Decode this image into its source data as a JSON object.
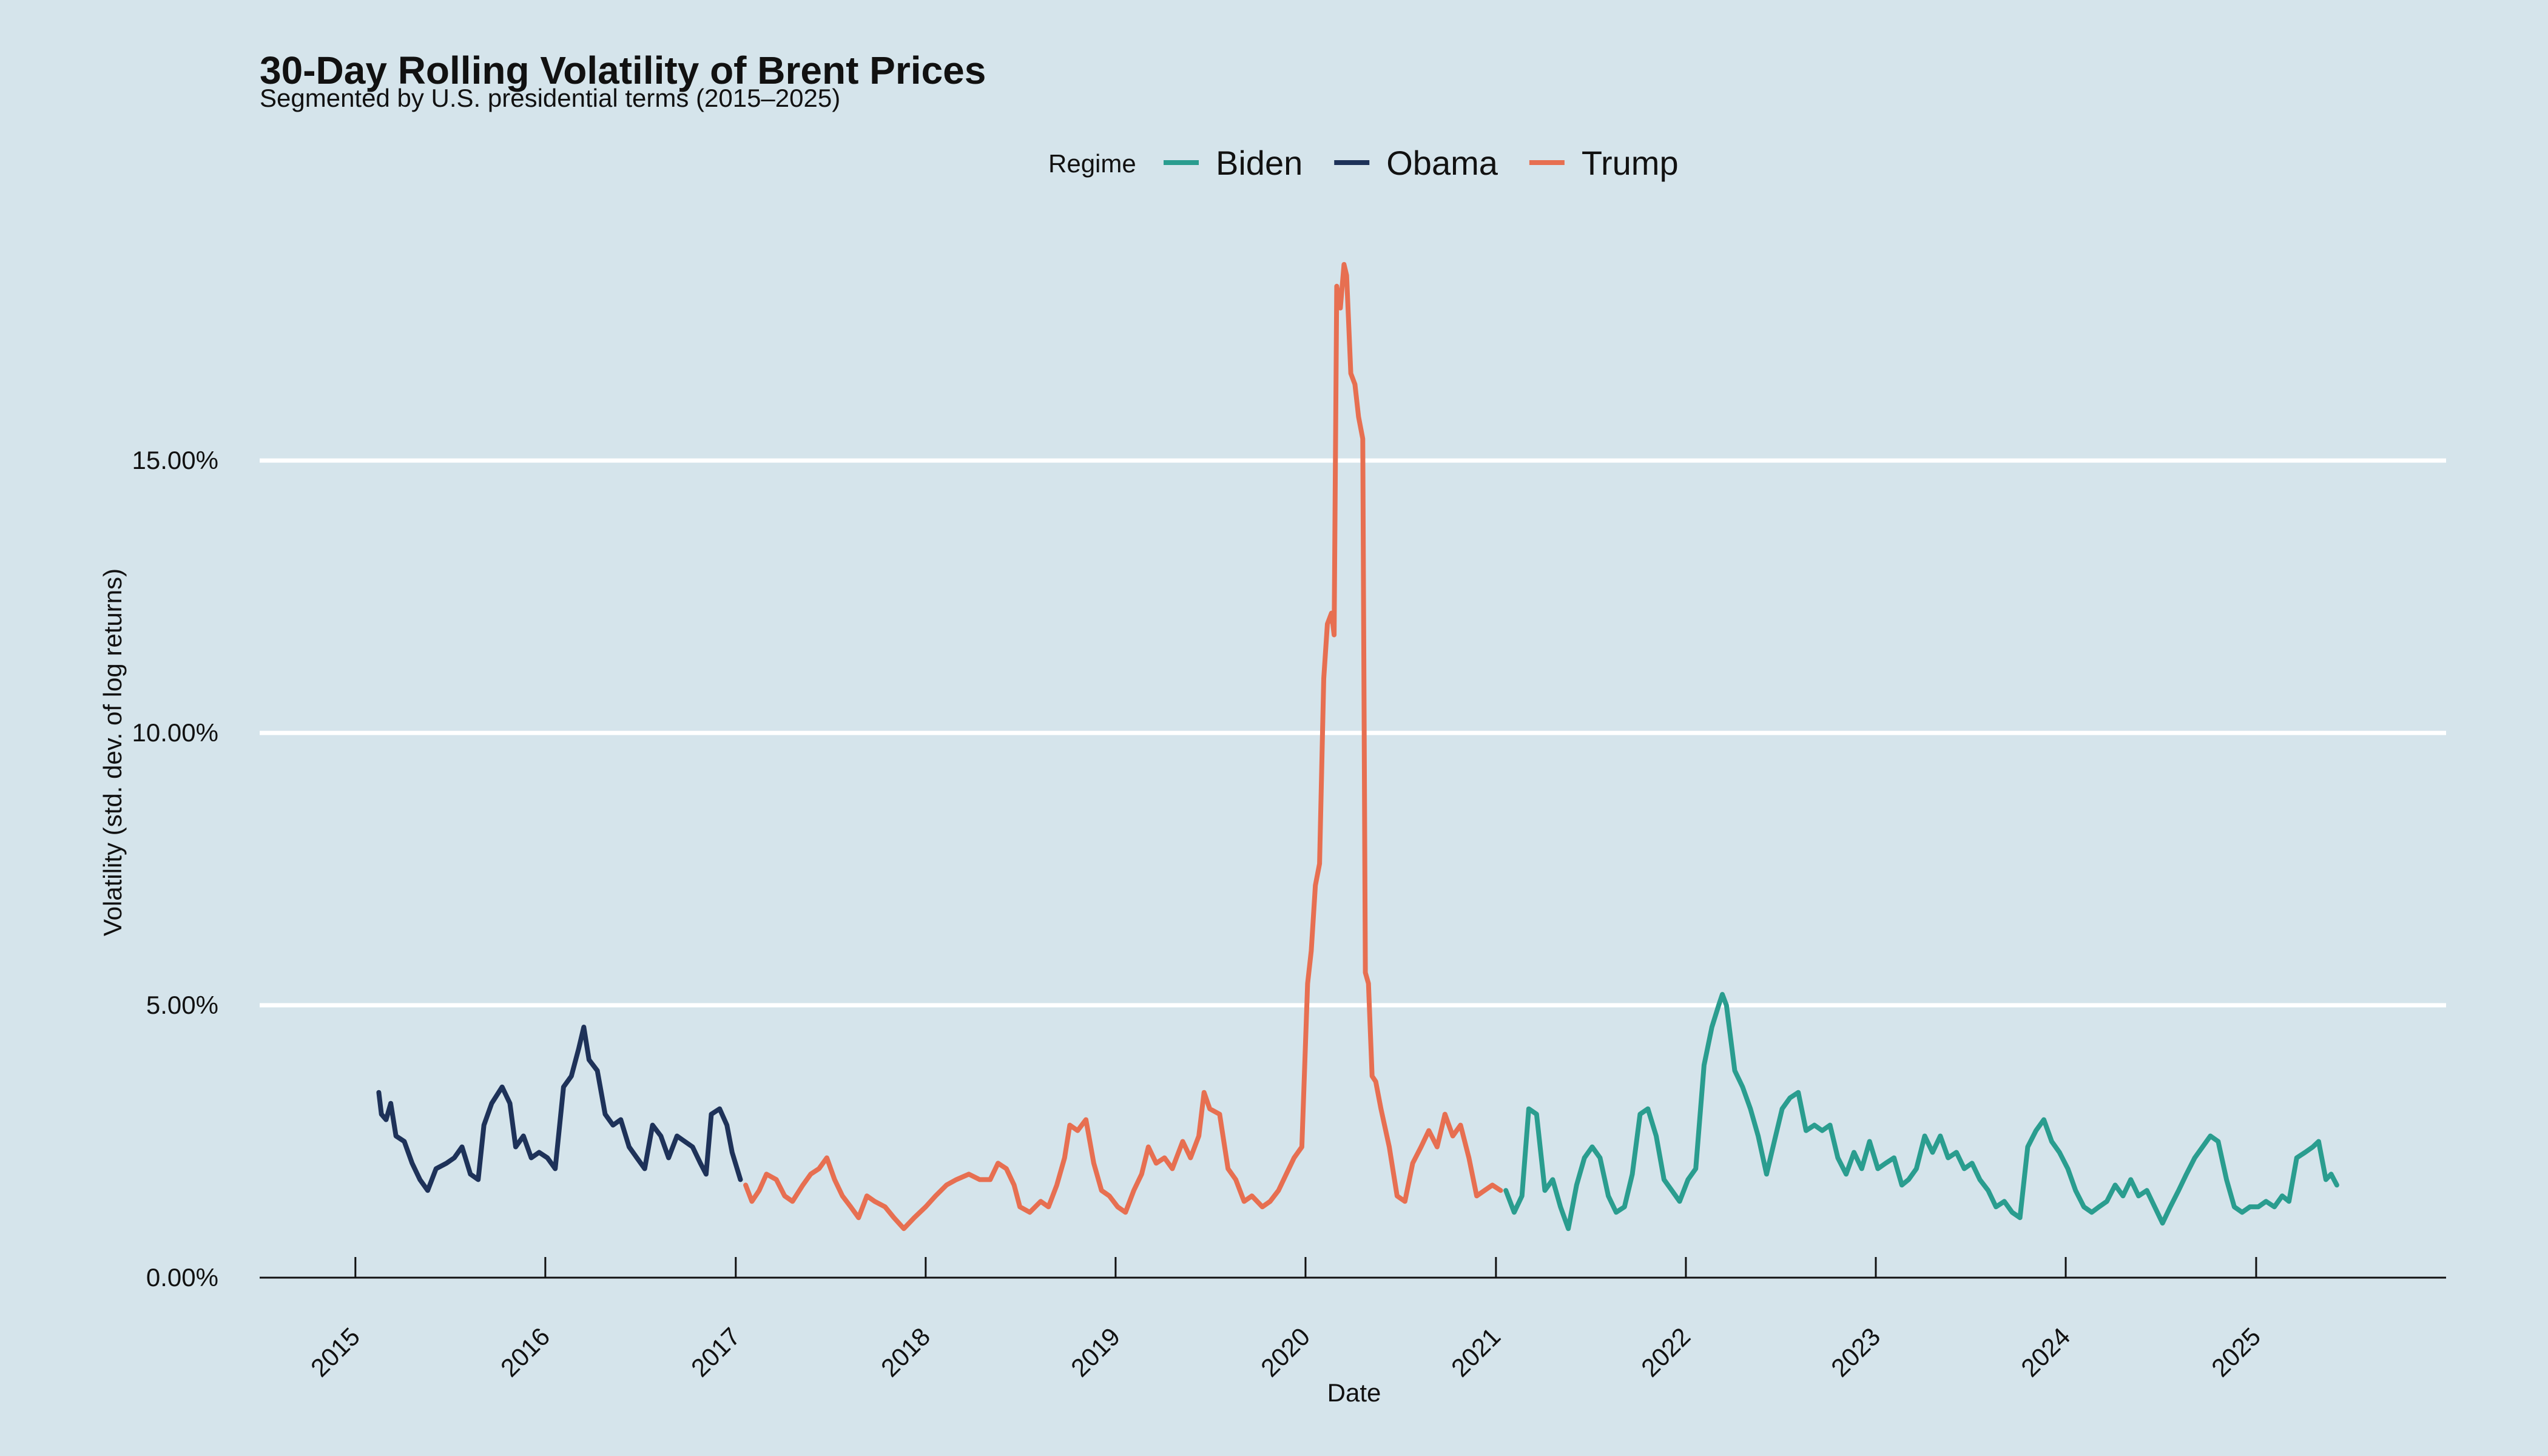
{
  "chart_data": {
    "type": "line",
    "title": "30-Day Rolling Volatility of Brent Prices",
    "subtitle": "Segmented by U.S. presidential terms (2015–2025)",
    "xlabel": "Date",
    "ylabel": "Volatility (std. dev. of log returns)",
    "ylim": [
      0,
      0.19
    ],
    "y_ticks": [
      0,
      0.05,
      0.1,
      0.15
    ],
    "y_tick_labels": [
      "0.00%",
      "5.00%",
      "10.00%",
      "15.00%"
    ],
    "x_ticks": [
      "2015",
      "2016",
      "2017",
      "2018",
      "2019",
      "2020",
      "2021",
      "2022",
      "2023",
      "2024",
      "2025"
    ],
    "xlim": [
      "2014-07-01",
      "2026-01-01"
    ],
    "grid": "horizontal major",
    "legend": {
      "title": "Regime",
      "position": "top",
      "entries": [
        {
          "name": "Biden",
          "color": "#2a9d8f"
        },
        {
          "name": "Obama",
          "color": "#1e3259"
        },
        {
          "name": "Trump",
          "color": "#e76f51"
        }
      ]
    },
    "series": [
      {
        "name": "Obama",
        "color": "#1e3259",
        "points": [
          [
            "2015-02-15",
            0.034
          ],
          [
            "2015-02-20",
            0.03
          ],
          [
            "2015-03-01",
            0.029
          ],
          [
            "2015-03-10",
            0.032
          ],
          [
            "2015-03-20",
            0.026
          ],
          [
            "2015-04-05",
            0.025
          ],
          [
            "2015-04-20",
            0.021
          ],
          [
            "2015-05-05",
            0.018
          ],
          [
            "2015-05-20",
            0.016
          ],
          [
            "2015-06-05",
            0.02
          ],
          [
            "2015-06-25",
            0.021
          ],
          [
            "2015-07-10",
            0.022
          ],
          [
            "2015-07-25",
            0.024
          ],
          [
            "2015-08-10",
            0.019
          ],
          [
            "2015-08-25",
            0.018
          ],
          [
            "2015-09-05",
            0.028
          ],
          [
            "2015-09-20",
            0.032
          ],
          [
            "2015-10-10",
            0.035
          ],
          [
            "2015-10-25",
            0.032
          ],
          [
            "2015-11-05",
            0.024
          ],
          [
            "2015-11-20",
            0.026
          ],
          [
            "2015-12-05",
            0.022
          ],
          [
            "2015-12-20",
            0.023
          ],
          [
            "2016-01-05",
            0.022
          ],
          [
            "2016-01-20",
            0.02
          ],
          [
            "2016-02-05",
            0.035
          ],
          [
            "2016-02-20",
            0.037
          ],
          [
            "2016-03-05",
            0.042
          ],
          [
            "2016-03-15",
            0.046
          ],
          [
            "2016-03-25",
            0.04
          ],
          [
            "2016-04-10",
            0.038
          ],
          [
            "2016-04-25",
            0.03
          ],
          [
            "2016-05-10",
            0.028
          ],
          [
            "2016-05-25",
            0.029
          ],
          [
            "2016-06-10",
            0.024
          ],
          [
            "2016-06-25",
            0.022
          ],
          [
            "2016-07-10",
            0.02
          ],
          [
            "2016-07-25",
            0.028
          ],
          [
            "2016-08-10",
            0.026
          ],
          [
            "2016-08-25",
            0.022
          ],
          [
            "2016-09-10",
            0.026
          ],
          [
            "2016-09-25",
            0.025
          ],
          [
            "2016-10-10",
            0.024
          ],
          [
            "2016-10-25",
            0.021
          ],
          [
            "2016-11-05",
            0.019
          ],
          [
            "2016-11-15",
            0.03
          ],
          [
            "2016-12-01",
            0.031
          ],
          [
            "2016-12-15",
            0.028
          ],
          [
            "2016-12-25",
            0.023
          ],
          [
            "2017-01-10",
            0.018
          ]
        ]
      },
      {
        "name": "Trump",
        "color": "#e76f51",
        "points": [
          [
            "2017-01-20",
            0.017
          ],
          [
            "2017-02-01",
            0.014
          ],
          [
            "2017-02-15",
            0.016
          ],
          [
            "2017-03-01",
            0.019
          ],
          [
            "2017-03-20",
            0.018
          ],
          [
            "2017-04-05",
            0.015
          ],
          [
            "2017-04-20",
            0.014
          ],
          [
            "2017-05-10",
            0.017
          ],
          [
            "2017-05-25",
            0.019
          ],
          [
            "2017-06-10",
            0.02
          ],
          [
            "2017-06-25",
            0.022
          ],
          [
            "2017-07-10",
            0.018
          ],
          [
            "2017-07-25",
            0.015
          ],
          [
            "2017-08-10",
            0.013
          ],
          [
            "2017-08-25",
            0.011
          ],
          [
            "2017-09-10",
            0.015
          ],
          [
            "2017-09-25",
            0.014
          ],
          [
            "2017-10-15",
            0.013
          ],
          [
            "2017-11-01",
            0.011
          ],
          [
            "2017-11-20",
            0.009
          ],
          [
            "2017-12-10",
            0.011
          ],
          [
            "2018-01-01",
            0.013
          ],
          [
            "2018-01-20",
            0.015
          ],
          [
            "2018-02-10",
            0.017
          ],
          [
            "2018-03-01",
            0.018
          ],
          [
            "2018-03-25",
            0.019
          ],
          [
            "2018-04-15",
            0.018
          ],
          [
            "2018-05-05",
            0.018
          ],
          [
            "2018-05-20",
            0.021
          ],
          [
            "2018-06-05",
            0.02
          ],
          [
            "2018-06-20",
            0.017
          ],
          [
            "2018-07-01",
            0.013
          ],
          [
            "2018-07-20",
            0.012
          ],
          [
            "2018-08-10",
            0.014
          ],
          [
            "2018-08-25",
            0.013
          ],
          [
            "2018-09-10",
            0.017
          ],
          [
            "2018-09-25",
            0.022
          ],
          [
            "2018-10-05",
            0.028
          ],
          [
            "2018-10-20",
            0.027
          ],
          [
            "2018-11-05",
            0.029
          ],
          [
            "2018-11-20",
            0.021
          ],
          [
            "2018-12-05",
            0.016
          ],
          [
            "2018-12-20",
            0.015
          ],
          [
            "2019-01-05",
            0.013
          ],
          [
            "2019-01-20",
            0.012
          ],
          [
            "2019-02-05",
            0.016
          ],
          [
            "2019-02-20",
            0.019
          ],
          [
            "2019-03-05",
            0.024
          ],
          [
            "2019-03-20",
            0.021
          ],
          [
            "2019-04-05",
            0.022
          ],
          [
            "2019-04-20",
            0.02
          ],
          [
            "2019-05-10",
            0.025
          ],
          [
            "2019-05-25",
            0.022
          ],
          [
            "2019-06-10",
            0.026
          ],
          [
            "2019-06-20",
            0.034
          ],
          [
            "2019-07-01",
            0.031
          ],
          [
            "2019-07-20",
            0.03
          ],
          [
            "2019-08-05",
            0.02
          ],
          [
            "2019-08-20",
            0.018
          ],
          [
            "2019-09-05",
            0.014
          ],
          [
            "2019-09-20",
            0.015
          ],
          [
            "2019-10-10",
            0.013
          ],
          [
            "2019-10-25",
            0.014
          ],
          [
            "2019-11-10",
            0.016
          ],
          [
            "2019-11-25",
            0.019
          ],
          [
            "2019-12-10",
            0.022
          ],
          [
            "2019-12-25",
            0.024
          ],
          [
            "2020-01-05",
            0.054
          ],
          [
            "2020-01-12",
            0.06
          ],
          [
            "2020-01-20",
            0.072
          ],
          [
            "2020-01-28",
            0.076
          ],
          [
            "2020-02-05",
            0.11
          ],
          [
            "2020-02-12",
            0.12
          ],
          [
            "2020-02-20",
            0.122
          ],
          [
            "2020-02-25",
            0.118
          ],
          [
            "2020-03-01",
            0.182
          ],
          [
            "2020-03-08",
            0.178
          ],
          [
            "2020-03-15",
            0.186
          ],
          [
            "2020-03-20",
            0.184
          ],
          [
            "2020-03-28",
            0.166
          ],
          [
            "2020-04-05",
            0.164
          ],
          [
            "2020-04-12",
            0.158
          ],
          [
            "2020-04-20",
            0.154
          ],
          [
            "2020-04-25",
            0.056
          ],
          [
            "2020-05-01",
            0.054
          ],
          [
            "2020-05-08",
            0.037
          ],
          [
            "2020-05-15",
            0.036
          ],
          [
            "2020-05-25",
            0.031
          ],
          [
            "2020-06-10",
            0.024
          ],
          [
            "2020-06-25",
            0.015
          ],
          [
            "2020-07-10",
            0.014
          ],
          [
            "2020-07-25",
            0.021
          ],
          [
            "2020-08-10",
            0.024
          ],
          [
            "2020-08-25",
            0.027
          ],
          [
            "2020-09-10",
            0.024
          ],
          [
            "2020-09-25",
            0.03
          ],
          [
            "2020-10-10",
            0.026
          ],
          [
            "2020-10-25",
            0.028
          ],
          [
            "2020-11-10",
            0.022
          ],
          [
            "2020-11-25",
            0.015
          ],
          [
            "2020-12-10",
            0.016
          ],
          [
            "2020-12-25",
            0.017
          ],
          [
            "2021-01-10",
            0.016
          ]
        ]
      },
      {
        "name": "Biden",
        "color": "#2a9d8f",
        "points": [
          [
            "2021-01-20",
            0.016
          ],
          [
            "2021-02-05",
            0.012
          ],
          [
            "2021-02-20",
            0.015
          ],
          [
            "2021-03-05",
            0.031
          ],
          [
            "2021-03-20",
            0.03
          ],
          [
            "2021-04-05",
            0.016
          ],
          [
            "2021-04-20",
            0.018
          ],
          [
            "2021-05-05",
            0.013
          ],
          [
            "2021-05-20",
            0.009
          ],
          [
            "2021-06-05",
            0.017
          ],
          [
            "2021-06-20",
            0.022
          ],
          [
            "2021-07-05",
            0.024
          ],
          [
            "2021-07-20",
            0.022
          ],
          [
            "2021-08-05",
            0.015
          ],
          [
            "2021-08-20",
            0.012
          ],
          [
            "2021-09-05",
            0.013
          ],
          [
            "2021-09-20",
            0.019
          ],
          [
            "2021-10-05",
            0.03
          ],
          [
            "2021-10-20",
            0.031
          ],
          [
            "2021-11-05",
            0.026
          ],
          [
            "2021-11-20",
            0.018
          ],
          [
            "2021-12-05",
            0.016
          ],
          [
            "2021-12-20",
            0.014
          ],
          [
            "2022-01-05",
            0.018
          ],
          [
            "2022-01-20",
            0.02
          ],
          [
            "2022-02-05",
            0.039
          ],
          [
            "2022-02-20",
            0.046
          ],
          [
            "2022-03-05",
            0.05
          ],
          [
            "2022-03-12",
            0.052
          ],
          [
            "2022-03-20",
            0.05
          ],
          [
            "2022-04-05",
            0.038
          ],
          [
            "2022-04-20",
            0.035
          ],
          [
            "2022-05-05",
            0.031
          ],
          [
            "2022-05-20",
            0.026
          ],
          [
            "2022-06-05",
            0.019
          ],
          [
            "2022-06-20",
            0.025
          ],
          [
            "2022-07-05",
            0.031
          ],
          [
            "2022-07-20",
            0.033
          ],
          [
            "2022-08-05",
            0.034
          ],
          [
            "2022-08-20",
            0.027
          ],
          [
            "2022-09-05",
            0.028
          ],
          [
            "2022-09-20",
            0.027
          ],
          [
            "2022-10-05",
            0.028
          ],
          [
            "2022-10-20",
            0.022
          ],
          [
            "2022-11-05",
            0.019
          ],
          [
            "2022-11-20",
            0.023
          ],
          [
            "2022-12-05",
            0.02
          ],
          [
            "2022-12-20",
            0.025
          ],
          [
            "2023-01-05",
            0.02
          ],
          [
            "2023-01-20",
            0.021
          ],
          [
            "2023-02-05",
            0.022
          ],
          [
            "2023-02-20",
            0.017
          ],
          [
            "2023-03-05",
            0.018
          ],
          [
            "2023-03-20",
            0.02
          ],
          [
            "2023-04-05",
            0.026
          ],
          [
            "2023-04-20",
            0.023
          ],
          [
            "2023-05-05",
            0.026
          ],
          [
            "2023-05-20",
            0.022
          ],
          [
            "2023-06-05",
            0.023
          ],
          [
            "2023-06-20",
            0.02
          ],
          [
            "2023-07-05",
            0.021
          ],
          [
            "2023-07-20",
            0.018
          ],
          [
            "2023-08-05",
            0.016
          ],
          [
            "2023-08-20",
            0.013
          ],
          [
            "2023-09-05",
            0.014
          ],
          [
            "2023-09-20",
            0.012
          ],
          [
            "2023-10-05",
            0.011
          ],
          [
            "2023-10-20",
            0.024
          ],
          [
            "2023-11-05",
            0.027
          ],
          [
            "2023-11-20",
            0.029
          ],
          [
            "2023-12-05",
            0.025
          ],
          [
            "2023-12-20",
            0.023
          ],
          [
            "2024-01-05",
            0.02
          ],
          [
            "2024-01-20",
            0.016
          ],
          [
            "2024-02-05",
            0.013
          ],
          [
            "2024-02-20",
            0.012
          ],
          [
            "2024-03-05",
            0.013
          ],
          [
            "2024-03-20",
            0.014
          ],
          [
            "2024-04-05",
            0.017
          ],
          [
            "2024-04-20",
            0.015
          ],
          [
            "2024-05-05",
            0.018
          ],
          [
            "2024-05-20",
            0.015
          ],
          [
            "2024-06-05",
            0.016
          ],
          [
            "2024-06-20",
            0.013
          ],
          [
            "2024-07-05",
            0.01
          ],
          [
            "2024-07-20",
            0.013
          ],
          [
            "2024-08-05",
            0.016
          ],
          [
            "2024-08-20",
            0.019
          ],
          [
            "2024-09-05",
            0.022
          ],
          [
            "2024-09-20",
            0.024
          ],
          [
            "2024-10-05",
            0.026
          ],
          [
            "2024-10-20",
            0.025
          ],
          [
            "2024-11-05",
            0.018
          ],
          [
            "2024-11-20",
            0.013
          ],
          [
            "2024-12-05",
            0.012
          ],
          [
            "2024-12-20",
            0.013
          ],
          [
            "2025-01-05",
            0.013
          ],
          [
            "2025-01-20",
            0.014
          ],
          [
            "2025-02-05",
            0.013
          ],
          [
            "2025-02-20",
            0.015
          ],
          [
            "2025-03-05",
            0.014
          ],
          [
            "2025-03-20",
            0.022
          ],
          [
            "2025-04-05",
            0.023
          ],
          [
            "2025-04-20",
            0.024
          ],
          [
            "2025-05-01",
            0.025
          ],
          [
            "2025-05-15",
            0.018
          ],
          [
            "2025-05-25",
            0.019
          ],
          [
            "2025-06-05",
            0.017
          ]
        ]
      }
    ]
  }
}
